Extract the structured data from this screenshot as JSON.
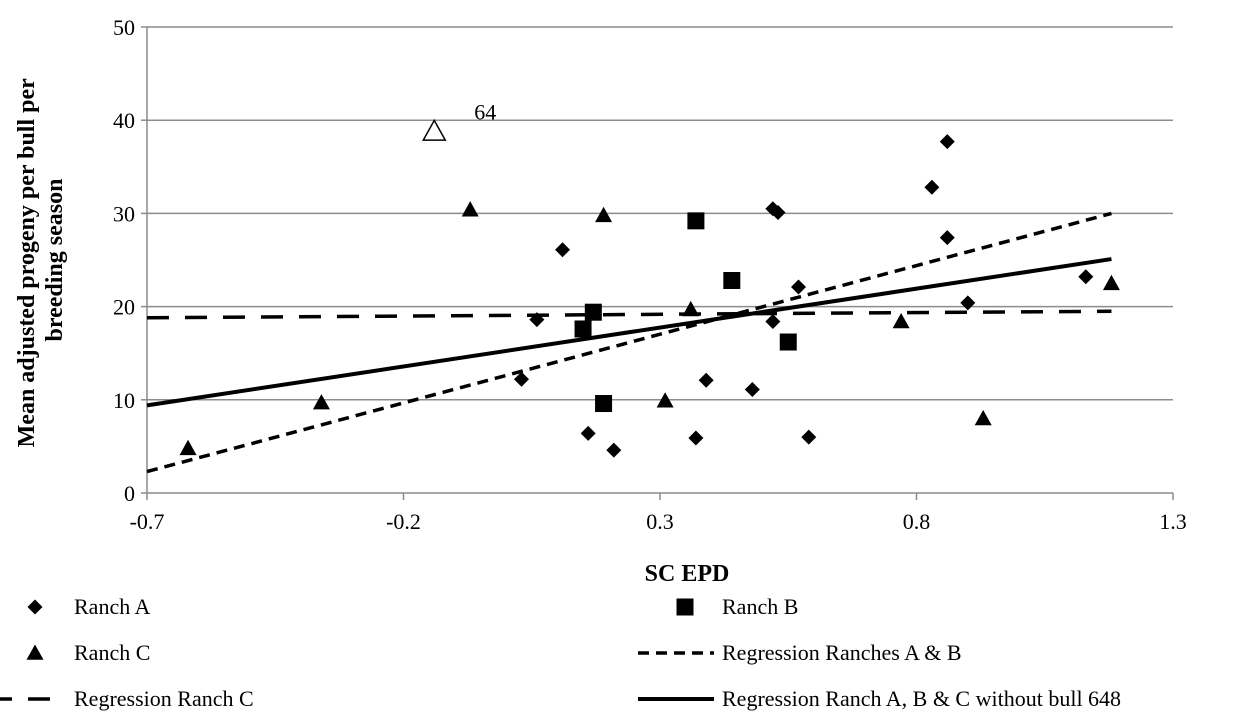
{
  "chart_data": {
    "type": "scatter",
    "xlabel": "SC EPD",
    "ylabel": [
      "Mean adjusted progeny per bull per",
      "breeding season"
    ],
    "xlim": [
      -0.7,
      1.3
    ],
    "ylim": [
      0,
      50
    ],
    "x_ticks": [
      -0.7,
      -0.2,
      0.3,
      0.8,
      1.3
    ],
    "x_tick_labels": [
      "-0.7",
      "-0.2",
      "0.3",
      "0.8",
      "1.3"
    ],
    "y_ticks": [
      0,
      10,
      20,
      30,
      40,
      50
    ],
    "y_tick_labels": [
      "0",
      "10",
      "20",
      "30",
      "40",
      "50"
    ],
    "grid": "horizontal",
    "series": [
      {
        "name": "Ranch A",
        "marker": "diamond",
        "points": [
          [
            0.06,
            18.6
          ],
          [
            0.03,
            12.2
          ],
          [
            0.11,
            26.1
          ],
          [
            0.16,
            6.4
          ],
          [
            0.21,
            4.6
          ],
          [
            0.37,
            5.9
          ],
          [
            0.39,
            12.1
          ],
          [
            0.48,
            11.1
          ],
          [
            0.52,
            30.5
          ],
          [
            0.53,
            30.1
          ],
          [
            0.52,
            18.4
          ],
          [
            0.57,
            22.1
          ],
          [
            0.59,
            6.0
          ],
          [
            0.83,
            32.8
          ],
          [
            0.86,
            37.7
          ],
          [
            0.86,
            27.4
          ],
          [
            0.9,
            20.4
          ],
          [
            1.13,
            23.2
          ]
        ]
      },
      {
        "name": "Ranch B",
        "marker": "square",
        "points": [
          [
            0.15,
            17.6
          ],
          [
            0.17,
            19.4
          ],
          [
            0.19,
            9.6
          ],
          [
            0.37,
            29.2
          ],
          [
            0.44,
            22.8
          ],
          [
            0.55,
            16.2
          ]
        ]
      },
      {
        "name": "Ranch C",
        "marker": "triangle",
        "points": [
          [
            -0.62,
            4.8
          ],
          [
            -0.36,
            9.7
          ],
          [
            -0.07,
            30.4
          ],
          [
            0.19,
            29.8
          ],
          [
            0.31,
            9.9
          ],
          [
            0.36,
            19.7
          ],
          [
            0.77,
            18.4
          ],
          [
            0.93,
            8.0
          ],
          [
            1.18,
            22.5
          ]
        ]
      }
    ],
    "outlier": {
      "x": -0.14,
      "y": 38.8,
      "label": "64"
    },
    "lines": [
      {
        "name": "Regression Ranches A & B",
        "style": "short-dash",
        "x": [
          -0.7,
          1.18
        ],
        "y": [
          2.3,
          30.0
        ]
      },
      {
        "name": "Regression Ranch C",
        "style": "long-dash",
        "x": [
          -0.7,
          1.18
        ],
        "y": [
          18.8,
          19.5
        ]
      },
      {
        "name": "Regression Ranch A, B & C without bull 648",
        "style": "solid",
        "x": [
          -0.7,
          1.18
        ],
        "y": [
          9.4,
          25.1
        ]
      }
    ],
    "legend": {
      "placement": "bottom",
      "items": [
        {
          "label": "Ranch A",
          "symbol": "diamond"
        },
        {
          "label": "Ranch B",
          "symbol": "square"
        },
        {
          "label": "Ranch C",
          "symbol": "triangle"
        },
        {
          "label": "Regression Ranches A & B",
          "symbol": "short-dash"
        },
        {
          "label": "Regression Ranch C",
          "symbol": "long-dash"
        },
        {
          "label": "Regression Ranch A, B & C without bull 648",
          "symbol": "solid"
        }
      ]
    }
  }
}
